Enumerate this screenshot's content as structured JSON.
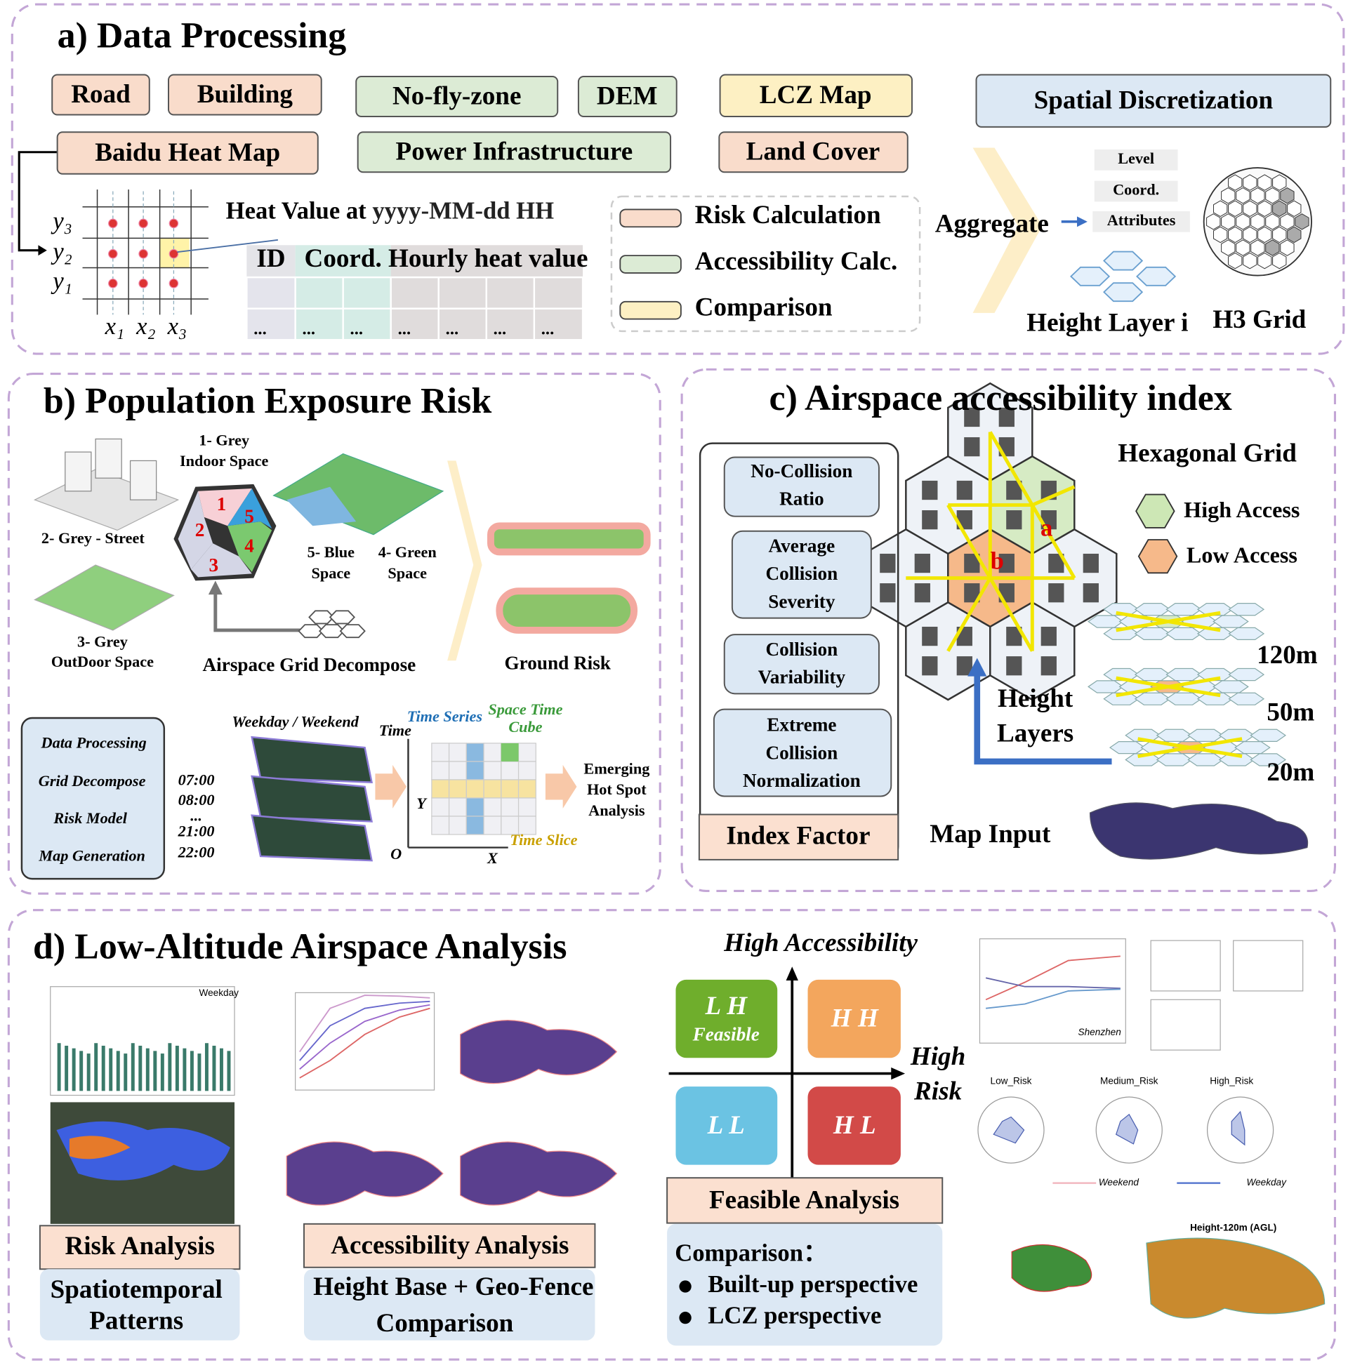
{
  "a": {
    "title": "a) Data Processing",
    "sources": {
      "road": "Road",
      "building": "Building",
      "no_fly_zone": "No-fly-zone",
      "dem": "DEM",
      "lcz_map": "LCZ Map",
      "baidu_heat_map": "Baidu Heat Map",
      "power": "Power Infrastructure",
      "land_cover": "Land Cover"
    },
    "spatial_discretization": "Spatial Discretization",
    "grid_y": [
      "y₃",
      "y₂",
      "y₁"
    ],
    "grid_x": [
      "x₁",
      "x₂",
      "x₃"
    ],
    "heat_label": "Heat Value at",
    "heat_time": "yyyy-MM-dd HH",
    "table": {
      "header": [
        "ID",
        "Coord.",
        "Hourly heat value"
      ],
      "row": [
        "...",
        "...",
        "...",
        "...",
        "...",
        "...",
        "..."
      ]
    },
    "legend": [
      "Risk Calculation",
      "Accessibility Calc.",
      "Comparison"
    ],
    "aggregate": "Aggregate",
    "attributes": [
      "Level",
      "Coord.",
      "Attributes"
    ],
    "height_layer": "Height Layer i",
    "h3_grid": "H3 Grid"
  },
  "b": {
    "title": "b) Population Exposure Risk",
    "space_labels": {
      "grey_indoor": [
        "1- Grey",
        "Indoor Space"
      ],
      "grey_street": "2- Grey - Street",
      "grey_outdoor": [
        "3- Grey",
        "OutDoor Space"
      ],
      "blue": [
        "5- Blue",
        "Space"
      ],
      "green": [
        "4- Green",
        "Space"
      ]
    },
    "hex_numbers": [
      "1",
      "2",
      "3",
      "4",
      "5"
    ],
    "grid_decompose": "Airspace Grid Decompose",
    "ground_risk": "Ground Risk",
    "steps": [
      "Data Processing",
      "Grid Decompose",
      "Risk Model",
      "Map Generation"
    ],
    "weekday_weekend": "Weekday / Weekend",
    "times": [
      "07:00",
      "08:00",
      "...",
      "21:00",
      "22:00"
    ],
    "cube": {
      "time": "Time",
      "time_series": "Time Series",
      "space_time_cube": [
        "Space Time",
        "Cube"
      ],
      "y": "Y",
      "o": "O",
      "x": "X",
      "time_slice": "Time Slice"
    },
    "hot_spot": [
      "Emerging",
      "Hot Spot",
      "Analysis"
    ]
  },
  "c": {
    "title": "c) Airspace accessibility index",
    "factors": [
      [
        "No-Collision",
        "Ratio"
      ],
      [
        "Average",
        "Collision",
        "Severity"
      ],
      [
        "Collision",
        "Variability"
      ],
      [
        "Extreme",
        "Collision",
        "Normalization"
      ]
    ],
    "index_factor": "Index Factor",
    "hexagonal_grid": "Hexagonal Grid",
    "high_access": "High Access",
    "low_access": "Low Access",
    "hex_a": "a",
    "hex_b": "b",
    "heights": [
      "120m",
      "50m",
      "20m"
    ],
    "height_layers": [
      "Height",
      "Layers"
    ],
    "map_input": "Map Input"
  },
  "d": {
    "title": "d) Low-Altitude Airspace Analysis",
    "high_accessibility": "High Accessibility",
    "high_risk": [
      "High",
      "Risk"
    ],
    "quadrants": {
      "lh": [
        "L H",
        "Feasible"
      ],
      "hh": "H H",
      "ll": "L L",
      "hl": "H L"
    },
    "feasible_analysis": "Feasible Analysis",
    "comparison": "Comparison：",
    "bullets": [
      "Built-up perspective",
      "LCZ perspective"
    ],
    "risk_analysis": "Risk Analysis",
    "spatiotemporal": [
      "Spatiotemporal",
      "Patterns"
    ],
    "accessibility_analysis": "Accessibility Analysis",
    "height_base": [
      "Height Base + Geo-Fence",
      "Comparison"
    ],
    "radar_titles": [
      "Low_Risk",
      "Medium_Risk",
      "High_Risk"
    ],
    "radar_legend": [
      "Weekend",
      "Weekday"
    ],
    "map_title": "Height-120m (AGL)",
    "weekday": "Weekday",
    "shenzhen": "Shenzhen"
  }
}
